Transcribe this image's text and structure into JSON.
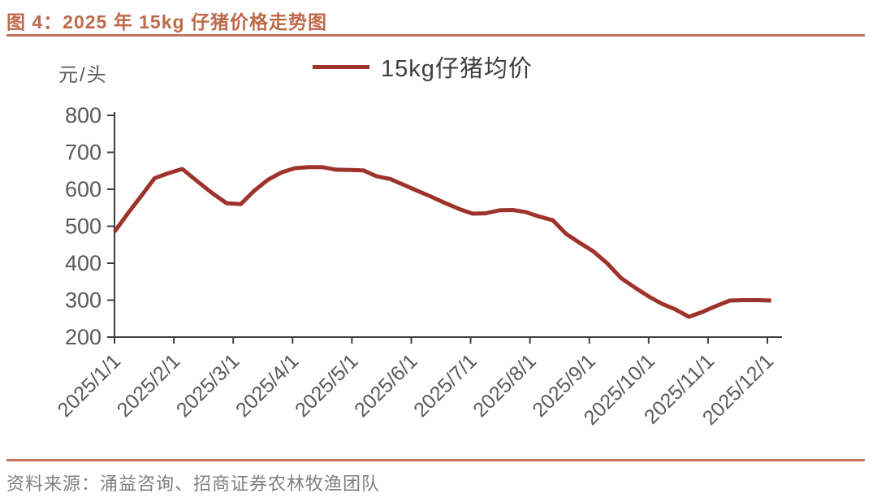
{
  "header": {
    "title": "图 4：2025 年 15kg 仔猪价格走势图"
  },
  "footer": {
    "source": "资料来源：涌益咨询、招商证券农林牧渔团队"
  },
  "colors": {
    "title_text": "#BE6A4A",
    "accent_rule": "#C27358",
    "series_line": "#9E332B",
    "axis_line": "#3F3F3F",
    "axis_text": "#595959",
    "legend_text": "#3F3F3F",
    "source_text": "#7F7F7F"
  },
  "chart_data": {
    "type": "line",
    "title": "2025 年 15kg 仔猪价格走势图",
    "y_unit": "元/头",
    "xlabel": "",
    "ylabel": "元/头",
    "ylim": [
      200,
      800
    ],
    "y_ticks": [
      200,
      300,
      400,
      500,
      600,
      700,
      800
    ],
    "grid": false,
    "legend_position": "top-center",
    "legend": [
      {
        "label": "15kg仔猪均价",
        "color": "#9E332B"
      }
    ],
    "x_tick_labels": [
      "2025/1/1",
      "2025/2/1",
      "2025/3/1",
      "2025/4/1",
      "2025/5/1",
      "2025/6/1",
      "2025/7/1",
      "2025/8/1",
      "2025/9/1",
      "2025/10/1",
      "2025/11/1",
      "2025/12/1"
    ],
    "series": [
      {
        "name": "15kg仔猪均价",
        "dates": [
          "2025/1/1",
          "2025/1/8",
          "2025/1/15",
          "2025/1/22",
          "2025/1/29",
          "2025/2/5",
          "2025/2/12",
          "2025/2/19",
          "2025/2/26",
          "2025/3/5",
          "2025/3/12",
          "2025/3/19",
          "2025/3/26",
          "2025/4/2",
          "2025/4/9",
          "2025/4/16",
          "2025/4/23",
          "2025/4/30",
          "2025/5/7",
          "2025/5/14",
          "2025/5/21",
          "2025/5/28",
          "2025/6/4",
          "2025/6/11",
          "2025/6/18",
          "2025/6/25",
          "2025/7/2",
          "2025/7/9",
          "2025/7/16",
          "2025/7/23",
          "2025/7/30",
          "2025/8/6",
          "2025/8/13",
          "2025/8/20",
          "2025/8/27",
          "2025/9/3",
          "2025/9/10",
          "2025/9/17",
          "2025/9/24",
          "2025/10/1",
          "2025/10/8",
          "2025/10/15",
          "2025/10/22",
          "2025/10/29",
          "2025/11/5",
          "2025/11/12",
          "2025/11/19",
          "2025/11/26",
          "2025/12/3"
        ],
        "values": [
          485,
          535,
          582,
          630,
          643,
          655,
          622,
          590,
          562,
          560,
          596,
          625,
          645,
          657,
          660,
          660,
          653,
          652,
          651,
          635,
          628,
          612,
          596,
          580,
          563,
          547,
          534,
          535,
          543,
          544,
          538,
          526,
          516,
          479,
          455,
          432,
          400,
          360,
          334,
          310,
          290,
          275,
          255,
          268,
          284,
          299,
          300,
          300,
          299
        ]
      }
    ]
  }
}
